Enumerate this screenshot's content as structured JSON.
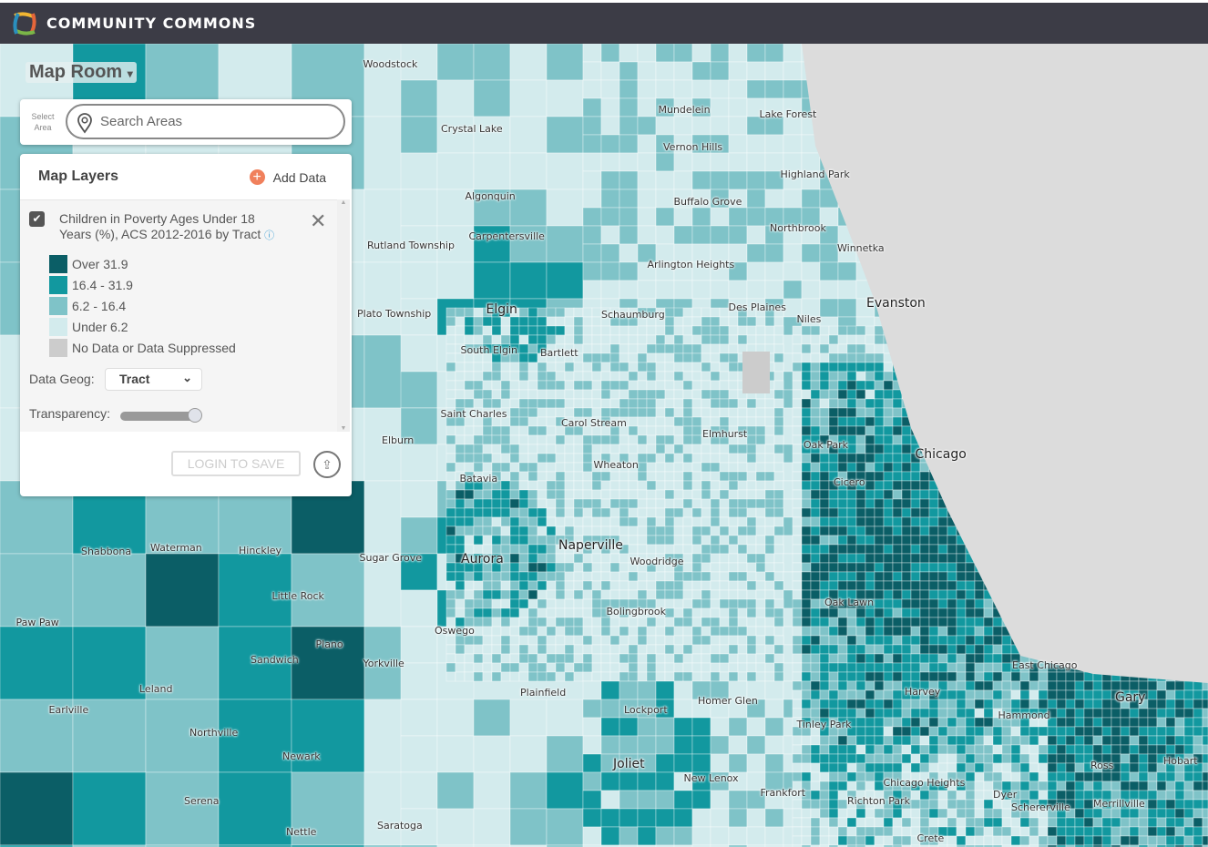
{
  "header": {
    "brand": "COMMUNITY COMMONS",
    "logo": "community-commons-logo"
  },
  "map_room": {
    "title": "Map Room",
    "caret": "▾"
  },
  "search": {
    "select_label": "Select Area",
    "placeholder": "Search Areas",
    "icon": "map-pin-icon"
  },
  "panel": {
    "title": "Map Layers",
    "add_data": "Add Data",
    "layer": {
      "name": "Children in Poverty Ages Under 18 Years (%), ACS 2012-2016 by Tract",
      "checked": true,
      "info_icon": "ⓘ"
    },
    "legend": [
      {
        "label": "Over 31.9",
        "color": "#0b5e66"
      },
      {
        "label": "16.4 - 31.9",
        "color": "#12989f"
      },
      {
        "label": "6.2 - 16.4",
        "color": "#7fc3c8"
      },
      {
        "label": "Under 6.2",
        "color": "#d3ebed"
      },
      {
        "label": "No Data or Data Suppressed",
        "color": "#cccccc"
      }
    ],
    "data_geog_label": "Data Geog:",
    "data_geog_value": "Tract",
    "transparency_label": "Transparency:",
    "transparency": 1.0,
    "login_button": "LOGIN TO SAVE"
  },
  "map": {
    "lake_color": "#dcdcdc",
    "labels": [
      "Woodstock",
      "Mundelein",
      "Lake Forest",
      "Crystal Lake",
      "Vernon Hills",
      "Highland Park",
      "Algonquin",
      "Buffalo Grove",
      "Northbrook",
      "Carpentersville",
      "Winnetka",
      "Rutland Township",
      "Arlington Heights",
      "Evanston",
      "Plato Township",
      "Elgin",
      "Schaumburg",
      "Des Plaines",
      "Niles",
      "South Elgin",
      "Bartlett",
      "Saint Charles",
      "Carol Stream",
      "Elmhurst",
      "Oak Park",
      "Chicago",
      "Elburn",
      "Batavia",
      "Wheaton",
      "Cicero",
      "Naperville",
      "Aurora",
      "Sugar Grove",
      "Shabbona",
      "Waterman",
      "Hinckley",
      "Woodridge",
      "Little Rock",
      "Paw Paw",
      "Oswego",
      "Bolingbrook",
      "Oak Lawn",
      "Plano",
      "Sandwich",
      "Yorkville",
      "East Chicago",
      "Leland",
      "Plainfield",
      "Homer Glen",
      "Harvey",
      "Gary",
      "Hammond",
      "Earlville",
      "Lockport",
      "Tinley Park",
      "Northville",
      "Newark",
      "Joliet",
      "New Lenox",
      "Chicago Heights",
      "Ross",
      "Hobart",
      "Dyer",
      "Richton Park",
      "Serena",
      "Frankfort",
      "Schererville",
      "Merrillville",
      "Nettle",
      "Saratoga",
      "Crete"
    ]
  }
}
